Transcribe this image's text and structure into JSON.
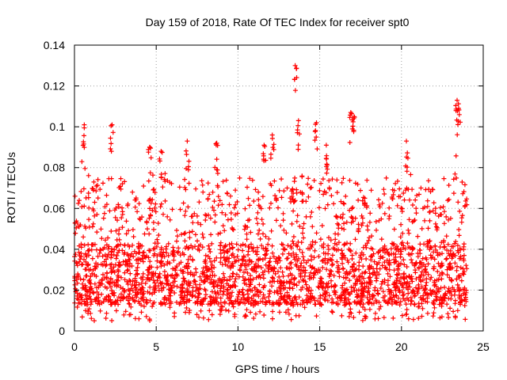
{
  "chart_data": {
    "type": "scatter",
    "title": "Day 159 of 2018, Rate Of TEC Index for receiver spt0",
    "xlabel": "GPS time / hours",
    "ylabel": "ROTI / TECUs",
    "xlim": [
      0,
      25
    ],
    "ylim": [
      0,
      0.14
    ],
    "x_ticks": [
      0,
      5,
      10,
      15,
      20,
      25
    ],
    "x_tick_labels": [
      "0",
      "5",
      "10",
      "15",
      "20",
      "25"
    ],
    "y_ticks": [
      0,
      0.02,
      0.04,
      0.06,
      0.08,
      0.1,
      0.12,
      0.14
    ],
    "y_tick_labels": [
      "0",
      "0.02",
      "0.04",
      "0.06",
      "0.08",
      "0.1",
      "0.12",
      "0.14"
    ],
    "grid": true,
    "marker": "+",
    "marker_color": "#ff0000",
    "series": [
      {
        "name": "ROTI",
        "data_extent": {
          "x": [
            0,
            24
          ],
          "y": [
            0.003,
            0.13
          ]
        },
        "dense_band_y": [
          0.005,
          0.075
        ],
        "peaks": [
          {
            "x": 0.6,
            "y": 0.101
          },
          {
            "x": 2.3,
            "y": 0.101
          },
          {
            "x": 4.6,
            "y": 0.09
          },
          {
            "x": 5.3,
            "y": 0.088
          },
          {
            "x": 6.9,
            "y": 0.093
          },
          {
            "x": 8.7,
            "y": 0.092
          },
          {
            "x": 11.6,
            "y": 0.091
          },
          {
            "x": 12.1,
            "y": 0.096
          },
          {
            "x": 13.5,
            "y": 0.13
          },
          {
            "x": 13.7,
            "y": 0.103
          },
          {
            "x": 14.8,
            "y": 0.102
          },
          {
            "x": 15.4,
            "y": 0.091
          },
          {
            "x": 16.9,
            "y": 0.107
          },
          {
            "x": 17.1,
            "y": 0.105
          },
          {
            "x": 20.3,
            "y": 0.093
          },
          {
            "x": 23.4,
            "y": 0.113
          },
          {
            "x": 23.5,
            "y": 0.109
          }
        ]
      }
    ]
  }
}
